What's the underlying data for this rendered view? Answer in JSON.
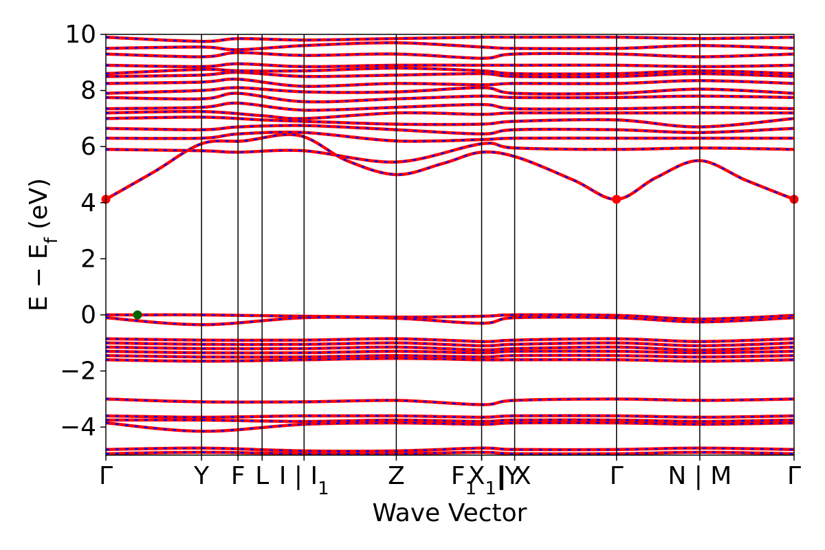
{
  "chart_data": {
    "type": "line",
    "title": "",
    "xlabel": "Wave Vector",
    "ylabel": "E − E_f (eV)",
    "ylabel_parts": {
      "main": "E − E",
      "sub": "f",
      "unit": " (eV)"
    },
    "ylim": [
      -5,
      10
    ],
    "yticks": [
      10,
      8,
      6,
      4,
      2,
      0,
      -2,
      -4
    ],
    "ytick_labels": [
      "10",
      "8",
      "6",
      "4",
      "2",
      "0",
      "−2",
      "−4"
    ],
    "kpoints": [
      {
        "label": "Γ",
        "pos": 0.0
      },
      {
        "label": "Y",
        "pos": 0.139
      },
      {
        "label": "F",
        "pos": 0.192
      },
      {
        "label": "L",
        "pos": 0.227
      },
      {
        "label": "I | I₁",
        "pos": 0.288,
        "display": {
          "main": "I | I",
          "sub": "1"
        }
      },
      {
        "label": "Z",
        "pos": 0.422
      },
      {
        "label": "F₁",
        "pos": 0.546,
        "display": {
          "main": "F",
          "sub": "1"
        }
      },
      {
        "label": "X₁|Y",
        "pos": 0.546,
        "display": {
          "main": "X",
          "sub": "1",
          "tail": "|Y"
        }
      },
      {
        "label": "| X",
        "pos": 0.594
      },
      {
        "label": "Γ",
        "pos": 0.742
      },
      {
        "label": "N | M",
        "pos": 0.863
      },
      {
        "label": "Γ",
        "pos": 1.0
      }
    ],
    "series_colors": {
      "primary": "#ff0000",
      "secondary": "#0000ff"
    },
    "markers": [
      {
        "name": "cbm",
        "x": 0.0,
        "y": 4.12,
        "color": "#ff0000"
      },
      {
        "name": "cbm",
        "x": 0.742,
        "y": 4.12,
        "color": "#ff0000"
      },
      {
        "name": "cbm",
        "x": 1.0,
        "y": 4.12,
        "color": "#ff0000"
      },
      {
        "name": "vbm",
        "x": 0.046,
        "y": 0.0,
        "color": "#006400"
      }
    ],
    "bands": [
      {
        "x": [
          0,
          0.07,
          0.139,
          0.2,
          0.28,
          0.35,
          0.422,
          0.49,
          0.546,
          0.6,
          0.68,
          0.742,
          0.8,
          0.863,
          0.93,
          1.0
        ],
        "y": [
          4.12,
          5.1,
          6.1,
          6.2,
          6.4,
          5.5,
          5.0,
          5.4,
          5.8,
          5.6,
          4.8,
          4.12,
          4.9,
          5.5,
          4.8,
          4.12
        ]
      },
      {
        "x": [
          0,
          0.139,
          0.192,
          0.288,
          0.422,
          0.546,
          0.594,
          0.742,
          0.863,
          1.0
        ],
        "y": [
          5.9,
          5.85,
          5.8,
          5.85,
          5.45,
          6.1,
          5.95,
          5.9,
          5.95,
          5.9
        ]
      },
      {
        "x": [
          0,
          0.139,
          0.192,
          0.288,
          0.422,
          0.546,
          0.594,
          0.742,
          0.863,
          1.0
        ],
        "y": [
          6.3,
          6.3,
          6.45,
          6.5,
          6.2,
          6.25,
          6.3,
          6.3,
          6.3,
          6.3
        ]
      },
      {
        "x": [
          0,
          0.139,
          0.192,
          0.288,
          0.422,
          0.546,
          0.594,
          0.742,
          0.863,
          1.0
        ],
        "y": [
          6.65,
          6.6,
          6.7,
          6.75,
          6.6,
          6.45,
          6.6,
          6.6,
          6.5,
          6.65
        ]
      },
      {
        "x": [
          0,
          0.139,
          0.227,
          0.288,
          0.422,
          0.546,
          0.594,
          0.742,
          0.863,
          1.0
        ],
        "y": [
          7.0,
          7.05,
          6.95,
          6.9,
          6.8,
          6.8,
          6.9,
          6.95,
          6.7,
          7.0
        ]
      },
      {
        "x": [
          0,
          0.139,
          0.227,
          0.288,
          0.422,
          0.546,
          0.594,
          0.742,
          0.863,
          1.0
        ],
        "y": [
          7.2,
          7.25,
          7.1,
          7.0,
          7.2,
          7.15,
          7.2,
          7.2,
          7.2,
          7.2
        ]
      },
      {
        "x": [
          0,
          0.139,
          0.192,
          0.288,
          0.422,
          0.546,
          0.594,
          0.742,
          0.863,
          1.0
        ],
        "y": [
          7.35,
          7.4,
          7.55,
          7.3,
          7.4,
          7.5,
          7.35,
          7.35,
          7.4,
          7.35
        ]
      },
      {
        "x": [
          0,
          0.139,
          0.192,
          0.288,
          0.422,
          0.546,
          0.594,
          0.742,
          0.863,
          1.0
        ],
        "y": [
          7.75,
          7.7,
          7.9,
          7.6,
          7.7,
          7.8,
          7.75,
          7.75,
          7.8,
          7.75
        ]
      },
      {
        "x": [
          0,
          0.139,
          0.192,
          0.288,
          0.422,
          0.546,
          0.594,
          0.742,
          0.863,
          1.0
        ],
        "y": [
          7.9,
          8.0,
          8.1,
          7.95,
          7.95,
          8.1,
          7.9,
          7.9,
          8.05,
          7.9
        ]
      },
      {
        "x": [
          0,
          0.139,
          0.192,
          0.288,
          0.422,
          0.546,
          0.594,
          0.742,
          0.863,
          1.0
        ],
        "y": [
          8.25,
          8.3,
          8.4,
          8.15,
          8.25,
          8.2,
          8.25,
          8.25,
          8.35,
          8.25
        ]
      },
      {
        "x": [
          0,
          0.139,
          0.192,
          0.288,
          0.422,
          0.546,
          0.594,
          0.742,
          0.863,
          1.0
        ],
        "y": [
          8.5,
          8.55,
          8.65,
          8.5,
          8.55,
          8.6,
          8.5,
          8.5,
          8.6,
          8.5
        ]
      },
      {
        "x": [
          0,
          0.139,
          0.192,
          0.288,
          0.422,
          0.546,
          0.594,
          0.742,
          0.863,
          1.0
        ],
        "y": [
          8.6,
          8.75,
          8.7,
          8.7,
          8.8,
          8.7,
          8.6,
          8.6,
          8.7,
          8.6
        ]
      },
      {
        "x": [
          0,
          0.139,
          0.192,
          0.288,
          0.422,
          0.546,
          0.594,
          0.742,
          0.863,
          1.0
        ],
        "y": [
          8.9,
          8.85,
          8.95,
          8.85,
          8.9,
          8.9,
          8.9,
          8.9,
          8.85,
          8.9
        ]
      },
      {
        "x": [
          0,
          0.139,
          0.192,
          0.288,
          0.422,
          0.546,
          0.594,
          0.742,
          0.863,
          1.0
        ],
        "y": [
          9.3,
          9.2,
          9.35,
          9.25,
          9.3,
          9.15,
          9.3,
          9.3,
          9.2,
          9.3
        ]
      },
      {
        "x": [
          0,
          0.139,
          0.192,
          0.288,
          0.422,
          0.546,
          0.594,
          0.742,
          0.863,
          1.0
        ],
        "y": [
          9.5,
          9.55,
          9.45,
          9.6,
          9.7,
          9.55,
          9.5,
          9.5,
          9.6,
          9.5
        ]
      },
      {
        "x": [
          0,
          0.139,
          0.192,
          0.288,
          0.422,
          0.546,
          0.594,
          0.742,
          0.863,
          1.0
        ],
        "y": [
          9.9,
          9.75,
          9.85,
          9.8,
          9.85,
          9.9,
          9.9,
          9.9,
          9.85,
          9.9
        ]
      },
      {
        "x": [
          0,
          0.046,
          0.139,
          0.288,
          0.422,
          0.546,
          0.594,
          0.742,
          0.863,
          1.0
        ],
        "y": [
          0.0,
          0.0,
          0.0,
          -0.05,
          -0.08,
          -0.05,
          0.0,
          -0.02,
          -0.15,
          -0.02
        ]
      },
      {
        "x": [
          0,
          0.139,
          0.288,
          0.422,
          0.546,
          0.594,
          0.742,
          0.863,
          1.0
        ],
        "y": [
          -0.1,
          -0.35,
          -0.1,
          -0.12,
          -0.3,
          -0.1,
          -0.1,
          -0.25,
          -0.1
        ]
      },
      {
        "x": [
          0,
          0.139,
          0.288,
          0.422,
          0.546,
          0.594,
          0.742,
          0.863,
          1.0
        ],
        "y": [
          -0.85,
          -0.9,
          -0.9,
          -0.85,
          -0.95,
          -0.9,
          -0.85,
          -0.95,
          -0.85
        ]
      },
      {
        "x": [
          0,
          0.139,
          0.288,
          0.422,
          0.546,
          0.594,
          0.742,
          0.863,
          1.0
        ],
        "y": [
          -1.0,
          -1.05,
          -1.05,
          -1.0,
          -1.1,
          -1.05,
          -1.0,
          -1.1,
          -1.0
        ]
      },
      {
        "x": [
          0,
          0.139,
          0.288,
          0.422,
          0.546,
          0.594,
          0.742,
          0.863,
          1.0
        ],
        "y": [
          -1.15,
          -1.2,
          -1.2,
          -1.15,
          -1.25,
          -1.2,
          -1.15,
          -1.25,
          -1.15
        ]
      },
      {
        "x": [
          0,
          0.139,
          0.288,
          0.422,
          0.546,
          0.594,
          0.742,
          0.863,
          1.0
        ],
        "y": [
          -1.3,
          -1.35,
          -1.35,
          -1.3,
          -1.35,
          -1.3,
          -1.3,
          -1.35,
          -1.3
        ]
      },
      {
        "x": [
          0,
          0.139,
          0.288,
          0.422,
          0.546,
          0.594,
          0.742,
          0.863,
          1.0
        ],
        "y": [
          -1.45,
          -1.5,
          -1.5,
          -1.45,
          -1.5,
          -1.45,
          -1.45,
          -1.5,
          -1.45
        ]
      },
      {
        "x": [
          0,
          0.139,
          0.288,
          0.422,
          0.546,
          0.594,
          0.742,
          0.863,
          1.0
        ],
        "y": [
          -1.6,
          -1.65,
          -1.6,
          -1.55,
          -1.6,
          -1.6,
          -1.6,
          -1.65,
          -1.6
        ]
      },
      {
        "x": [
          0,
          0.139,
          0.288,
          0.422,
          0.546,
          0.594,
          0.742,
          0.863,
          1.0
        ],
        "y": [
          -3.0,
          -3.1,
          -3.1,
          -3.05,
          -3.2,
          -3.05,
          -3.0,
          -3.05,
          -3.0
        ]
      },
      {
        "x": [
          0,
          0.139,
          0.288,
          0.422,
          0.546,
          0.594,
          0.742,
          0.863,
          1.0
        ],
        "y": [
          -3.6,
          -3.65,
          -3.6,
          -3.6,
          -3.65,
          -3.6,
          -3.6,
          -3.65,
          -3.6
        ]
      },
      {
        "x": [
          0,
          0.139,
          0.288,
          0.422,
          0.546,
          0.594,
          0.742,
          0.863,
          1.0
        ],
        "y": [
          -3.75,
          -3.75,
          -3.8,
          -3.75,
          -3.8,
          -3.75,
          -3.75,
          -3.8,
          -3.75
        ]
      },
      {
        "x": [
          0,
          0.139,
          0.288,
          0.422,
          0.546,
          0.594,
          0.742,
          0.863,
          1.0
        ],
        "y": [
          -3.85,
          -4.15,
          -3.9,
          -3.85,
          -3.9,
          -3.85,
          -3.85,
          -3.9,
          -3.85
        ]
      },
      {
        "x": [
          0,
          0.139,
          0.288,
          0.422,
          0.546,
          0.594,
          0.742,
          0.863,
          1.0
        ],
        "y": [
          -4.8,
          -4.75,
          -4.85,
          -4.85,
          -4.75,
          -4.8,
          -4.8,
          -4.75,
          -4.8
        ]
      },
      {
        "x": [
          0,
          0.139,
          0.288,
          0.422,
          0.546,
          0.594,
          0.742,
          0.863,
          1.0
        ],
        "y": [
          -4.95,
          -4.9,
          -4.95,
          -4.95,
          -4.9,
          -4.95,
          -4.95,
          -4.9,
          -4.95
        ]
      }
    ]
  }
}
